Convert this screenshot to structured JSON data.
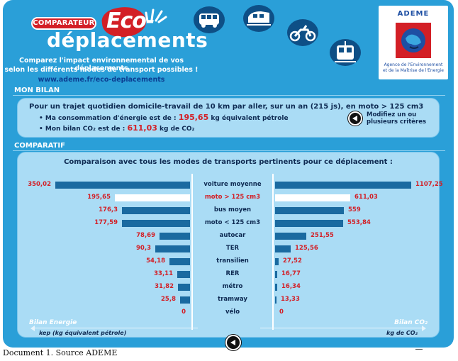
{
  "header": {
    "badge": "COMPARATEUR",
    "eco": "Eco-",
    "title": "déplacements",
    "tagline1": "Comparez l'impact environnemental de vos déplacements",
    "tagline2": "selon les différents modes de transport possibles !",
    "url": "www.ademe.fr/eco-deplacements",
    "mode_icons": [
      "bus-icon",
      "train-icon",
      "motorcycle-icon",
      "tram-icon"
    ]
  },
  "ademe": {
    "name": "ADEME",
    "subtitle_1": "Agence de l'Environnement",
    "subtitle_2": "et de la Maîtrise de l'Energie"
  },
  "bilan": {
    "section_title": "MON BILAN",
    "summary": "Pour un trajet quotidien domicile-travail de 10 km par aller, sur un an (215 js), en moto > 125 cm3",
    "energy_prefix": "• Ma consommation d'énergie est de :",
    "energy_value": "195,65",
    "energy_unit": "kg équivalent pétrole",
    "co2_prefix": "• Mon bilan CO₂ est de :",
    "co2_value": "611,03",
    "co2_unit": "kg de CO₂",
    "modify_line1": "Modifiez un ou",
    "modify_line2": "plusieurs critères"
  },
  "comparatif": {
    "section_title": "COMPARATIF",
    "title": "Comparaison avec tous les modes de transports pertinents pour ce déplacement :",
    "left_axis": "Bilan Energie",
    "left_unit": "kep (kg équivalent pétrole)",
    "right_axis": "Bilan CO₂",
    "right_unit": "kg de CO₂",
    "colors": {
      "bar": "#1a6aa0",
      "highlight_bar": "#ffffff",
      "value_text": "#d31f26"
    },
    "rows": [
      {
        "mode": "voiture moyenne",
        "energy": "350,02",
        "energy_num": 350.02,
        "co2": "1107,25",
        "co2_num": 1107.25,
        "highlight": false
      },
      {
        "mode": "moto > 125 cm3",
        "energy": "195,65",
        "energy_num": 195.65,
        "co2": "611,03",
        "co2_num": 611.03,
        "highlight": true
      },
      {
        "mode": "bus moyen",
        "energy": "176,3",
        "energy_num": 176.3,
        "co2": "559",
        "co2_num": 559,
        "highlight": false
      },
      {
        "mode": "moto < 125 cm3",
        "energy": "177,59",
        "energy_num": 177.59,
        "co2": "553,84",
        "co2_num": 553.84,
        "highlight": false
      },
      {
        "mode": "autocar",
        "energy": "78,69",
        "energy_num": 78.69,
        "co2": "251,55",
        "co2_num": 251.55,
        "highlight": false
      },
      {
        "mode": "TER",
        "energy": "90,3",
        "energy_num": 90.3,
        "co2": "125,56",
        "co2_num": 125.56,
        "highlight": false
      },
      {
        "mode": "transilien",
        "energy": "54,18",
        "energy_num": 54.18,
        "co2": "27,52",
        "co2_num": 27.52,
        "highlight": false
      },
      {
        "mode": "RER",
        "energy": "33,11",
        "energy_num": 33.11,
        "co2": "16,77",
        "co2_num": 16.77,
        "highlight": false
      },
      {
        "mode": "métro",
        "energy": "31,82",
        "energy_num": 31.82,
        "co2": "16,34",
        "co2_num": 16.34,
        "highlight": false
      },
      {
        "mode": "tramway",
        "energy": "25,8",
        "energy_num": 25.8,
        "co2": "13,33",
        "co2_num": 13.33,
        "highlight": false
      },
      {
        "mode": "vélo",
        "energy": "0",
        "energy_num": 0,
        "co2": "0",
        "co2_num": 0,
        "highlight": false
      }
    ]
  },
  "caption": "Document 1. Source ADEME"
}
